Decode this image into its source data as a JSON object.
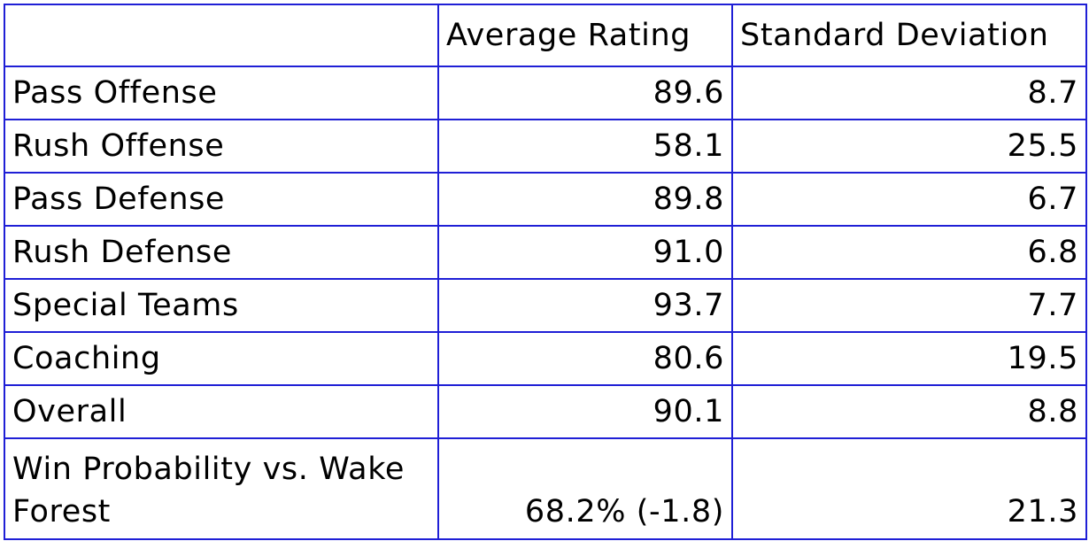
{
  "chart_data": {
    "type": "table",
    "columns": [
      "",
      "Average Rating",
      "Standard Deviation"
    ],
    "rows": [
      {
        "label": "Pass Offense",
        "average": "89.6",
        "std_dev": "8.7"
      },
      {
        "label": "Rush Offense",
        "average": "58.1",
        "std_dev": "25.5"
      },
      {
        "label": "Pass Defense",
        "average": "89.8",
        "std_dev": "6.7"
      },
      {
        "label": "Rush Defense",
        "average": "91.0",
        "std_dev": "6.8"
      },
      {
        "label": "Special Teams",
        "average": "93.7",
        "std_dev": "7.7"
      },
      {
        "label": "Coaching",
        "average": "80.6",
        "std_dev": "19.5"
      },
      {
        "label": "Overall",
        "average": "90.1",
        "std_dev": "8.8"
      },
      {
        "label": "Win Probability vs. Wake Forest",
        "average": "68.2% (-1.8)",
        "std_dev": "21.3"
      }
    ]
  },
  "colors": {
    "border": "#1f1fd6",
    "text": "#000000",
    "background": "#ffffff"
  }
}
